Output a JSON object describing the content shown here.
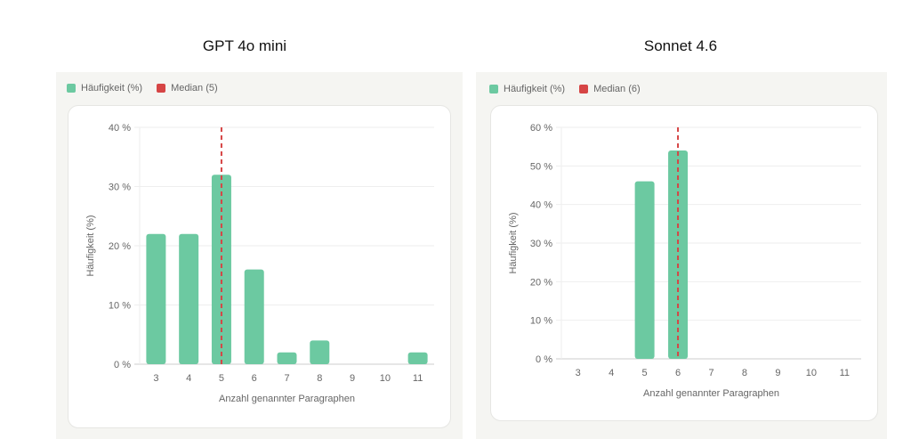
{
  "chart_data": [
    {
      "type": "bar",
      "title": "GPT 4o mini",
      "categories": [
        "3",
        "4",
        "5",
        "6",
        "7",
        "8",
        "9",
        "10",
        "11"
      ],
      "series": [
        {
          "name": "Häufigkeit (%)",
          "values": [
            22,
            22,
            32,
            16,
            2,
            4,
            0,
            0,
            2
          ]
        }
      ],
      "median": {
        "label": "Median (5)",
        "category": "5"
      },
      "xlabel": "Anzahl genannter Paragraphen",
      "ylabel": "Häufigkeit (%)",
      "ylim": [
        0,
        40
      ],
      "yticks": [
        "0 %",
        "10 %",
        "20 %",
        "30 %",
        "40 %"
      ],
      "grid": true,
      "legend": "top-left"
    },
    {
      "type": "bar",
      "title": "Sonnet 4.6",
      "categories": [
        "3",
        "4",
        "5",
        "6",
        "7",
        "8",
        "9",
        "10",
        "11"
      ],
      "series": [
        {
          "name": "Häufigkeit (%)",
          "values": [
            0,
            0,
            46,
            54,
            0,
            0,
            0,
            0,
            0
          ]
        }
      ],
      "median": {
        "label": "Median (6)",
        "category": "6"
      },
      "xlabel": "Anzahl genannter Paragraphen",
      "ylabel": "Häufigkeit (%)",
      "ylim": [
        0,
        60
      ],
      "yticks": [
        "0 %",
        "10 %",
        "20 %",
        "30 %",
        "40 %",
        "50 %",
        "60 %"
      ],
      "grid": true,
      "legend": "top-left"
    }
  ],
  "colors": {
    "bar": "#6cc9a1",
    "median": "#d64545"
  }
}
